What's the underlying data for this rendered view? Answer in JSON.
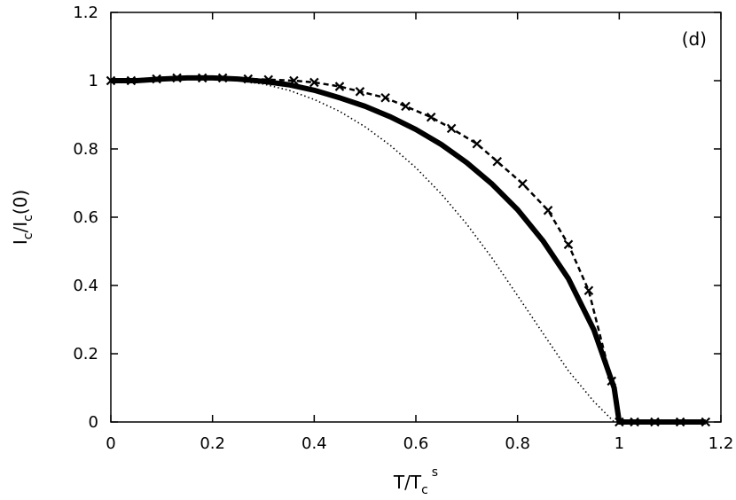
{
  "chart_data": {
    "type": "line",
    "panel_label": "(d)",
    "xlabel": {
      "base": "T/T",
      "sub": "c",
      "sup": "s"
    },
    "ylabel": {
      "a": "I",
      "a_sub": "c",
      "b": "/I",
      "b_sub": "c",
      "c": "(0)"
    },
    "xlim": [
      0,
      1.2
    ],
    "ylim": [
      0,
      1.2
    ],
    "xticks": [
      "0",
      "0.2",
      "0.4",
      "0.6",
      "0.8",
      "1",
      "1.2"
    ],
    "yticks": [
      "0",
      "0.2",
      "0.4",
      "0.6",
      "0.8",
      "1",
      "1.2"
    ],
    "grid": false,
    "legend": "none",
    "series": [
      {
        "style": "solid-thick",
        "x": [
          0,
          0.05,
          0.1,
          0.15,
          0.2,
          0.25,
          0.3,
          0.35,
          0.4,
          0.45,
          0.5,
          0.55,
          0.6,
          0.65,
          0.7,
          0.75,
          0.8,
          0.85,
          0.9,
          0.95,
          0.99,
          1.0,
          1.05,
          1.1,
          1.15,
          1.17
        ],
        "y": [
          1.0,
          1.0,
          1.005,
          1.008,
          1.008,
          1.005,
          0.998,
          0.988,
          0.972,
          0.95,
          0.925,
          0.894,
          0.857,
          0.813,
          0.76,
          0.697,
          0.622,
          0.531,
          0.42,
          0.27,
          0.1,
          0,
          0,
          0,
          0,
          0
        ]
      },
      {
        "style": "dashed-markers",
        "marker": "x",
        "x": [
          0,
          0.04,
          0.09,
          0.13,
          0.18,
          0.22,
          0.27,
          0.31,
          0.36,
          0.4,
          0.45,
          0.49,
          0.54,
          0.58,
          0.63,
          0.67,
          0.72,
          0.76,
          0.81,
          0.86,
          0.9,
          0.94,
          0.985,
          1.0,
          1.03,
          1.07,
          1.12,
          1.17
        ],
        "y": [
          1.0,
          1.0,
          1.005,
          1.008,
          1.008,
          1.008,
          1.005,
          1.003,
          1.0,
          0.995,
          0.983,
          0.968,
          0.95,
          0.925,
          0.893,
          0.86,
          0.815,
          0.763,
          0.698,
          0.62,
          0.52,
          0.385,
          0.12,
          0,
          0,
          0,
          0,
          0
        ]
      },
      {
        "style": "dotted-thin",
        "x": [
          0,
          0.05,
          0.1,
          0.15,
          0.2,
          0.25,
          0.3,
          0.35,
          0.4,
          0.45,
          0.5,
          0.55,
          0.6,
          0.65,
          0.7,
          0.75,
          0.8,
          0.85,
          0.9,
          0.95,
          0.99
        ],
        "y": [
          1.0,
          1.0,
          1.004,
          1.006,
          1.005,
          1.0,
          0.99,
          0.972,
          0.945,
          0.91,
          0.865,
          0.81,
          0.745,
          0.668,
          0.58,
          0.48,
          0.37,
          0.26,
          0.15,
          0.06,
          0
        ]
      }
    ]
  }
}
